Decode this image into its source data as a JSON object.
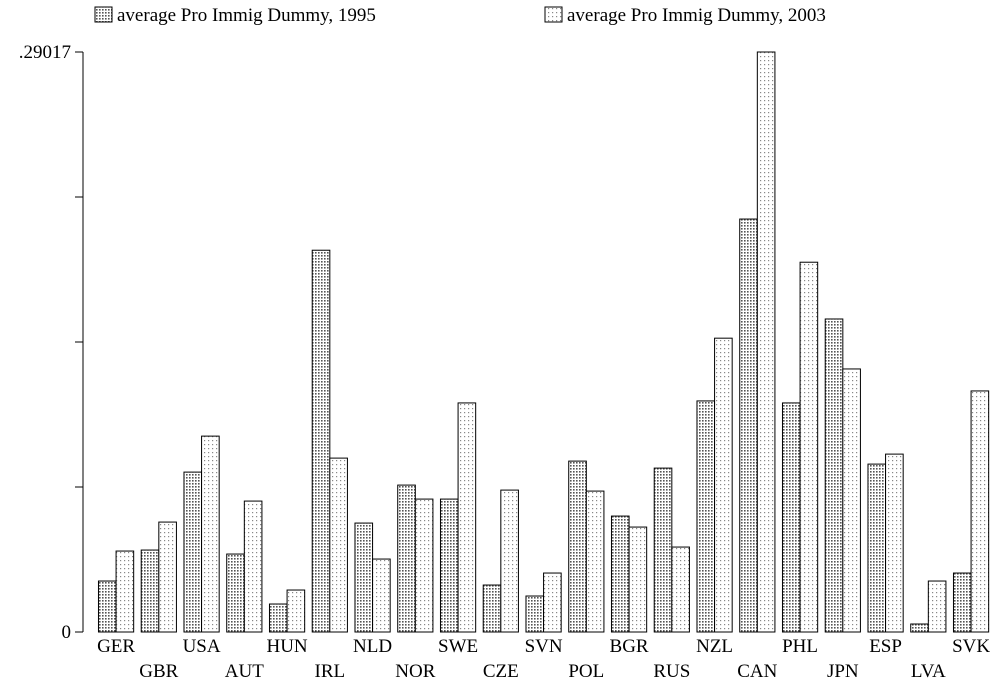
{
  "chart_data": {
    "type": "bar",
    "categories": [
      "GER",
      "GBR",
      "USA",
      "AUT",
      "HUN",
      "IRL",
      "NLD",
      "NOR",
      "SWE",
      "CZE",
      "SVN",
      "POL",
      "BGR",
      "RUS",
      "NZL",
      "CAN",
      "PHL",
      "JPN",
      "ESP",
      "LVA",
      "SVK"
    ],
    "series": [
      {
        "name": "average Pro Immig Dummy, 1995",
        "color": "#555555",
        "values": [
          0.0255,
          0.041,
          0.08,
          0.039,
          0.014,
          0.191,
          0.0545,
          0.0735,
          0.0665,
          0.0235,
          0.018,
          0.0855,
          0.058,
          0.082,
          0.1156,
          0.2066,
          0.1146,
          0.1566,
          0.084,
          0.004,
          0.0295
        ]
      },
      {
        "name": "average Pro Immig Dummy, 2003",
        "color": "#888888",
        "values": [
          0.0405,
          0.055,
          0.098,
          0.0655,
          0.021,
          0.087,
          0.0365,
          0.0665,
          0.1146,
          0.071,
          0.0295,
          0.0705,
          0.0525,
          0.0425,
          0.147,
          0.29017,
          0.185,
          0.1316,
          0.089,
          0.0255,
          0.1206
        ]
      }
    ],
    "ylim": [
      0,
      0.29017
    ],
    "yticks": [
      0,
      {
        "value": 0.29017,
        "label": ".29017"
      }
    ]
  }
}
